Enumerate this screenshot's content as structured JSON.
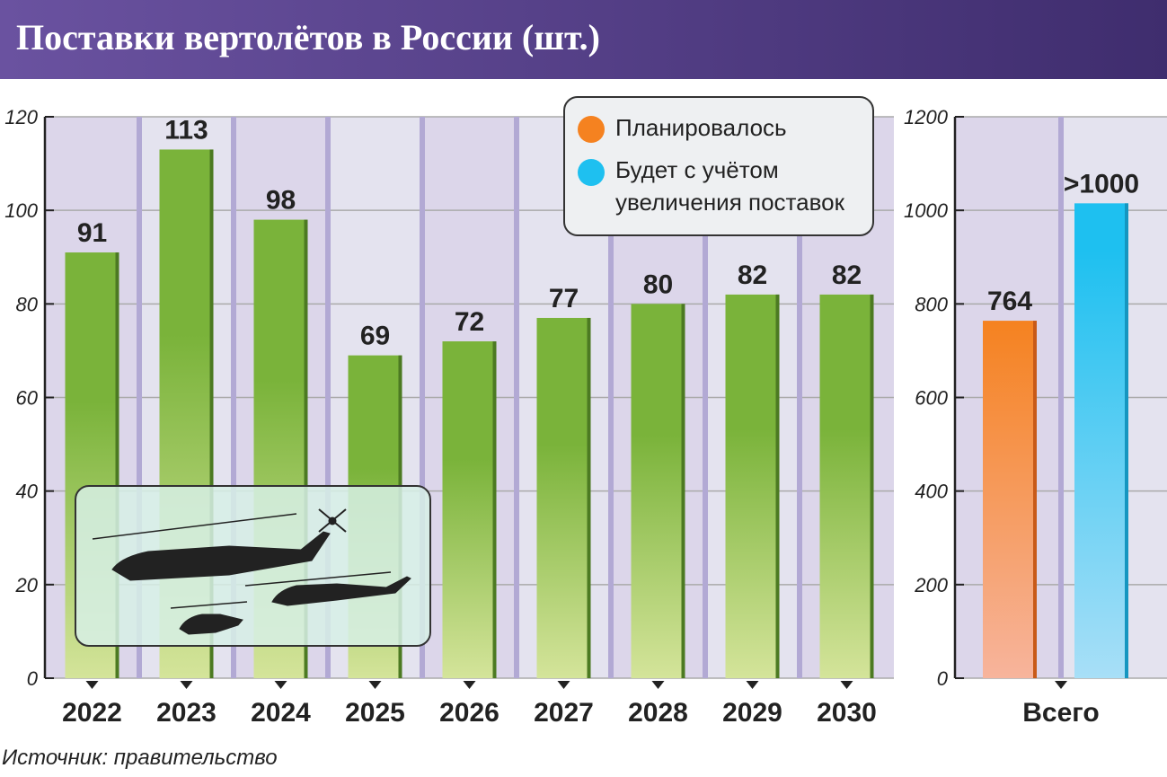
{
  "title": "Поставки вертолётов в России (шт.)",
  "source": "Источник: правительство",
  "legend": [
    {
      "label": "Планировалось",
      "color": "#f58220"
    },
    {
      "label": "Будет с учётом увеличения поставок",
      "color": "#1ec0f0"
    }
  ],
  "chart_data": [
    {
      "type": "bar",
      "categories": [
        "2022",
        "2023",
        "2024",
        "2025",
        "2026",
        "2027",
        "2028",
        "2029",
        "2030"
      ],
      "values": [
        91,
        113,
        98,
        69,
        72,
        77,
        80,
        82,
        82
      ],
      "data_labels": [
        "91",
        "113",
        "98",
        "69",
        "72",
        "77",
        "80",
        "82",
        "82"
      ],
      "ylim": [
        0,
        120
      ],
      "yticks": [
        "0",
        "20",
        "40",
        "60",
        "80",
        "100",
        "120"
      ],
      "color": "#7ab33a",
      "grid": true
    },
    {
      "type": "bar",
      "categories": [
        "Всего"
      ],
      "series": [
        {
          "name": "Планировалось",
          "values": [
            764
          ],
          "data_label": "764",
          "color": "#f58220"
        },
        {
          "name": "Будет с учётом увеличения поставок",
          "values": [
            1000
          ],
          "data_label": ">1000",
          "color": "#1ec0f0"
        }
      ],
      "ylim": [
        0,
        1200
      ],
      "yticks": [
        "0",
        "200",
        "400",
        "600",
        "800",
        "1000",
        "1200"
      ],
      "grid": true
    }
  ]
}
